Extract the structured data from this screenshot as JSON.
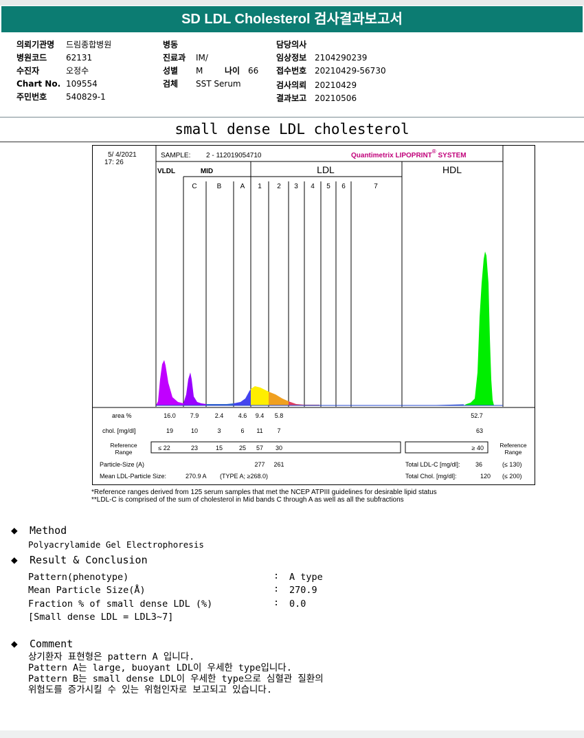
{
  "title": "SD LDL Cholesterol 검사결과보고서",
  "patient": {
    "col1": [
      {
        "k": "의뢰기관명",
        "v": "드림종합병원"
      },
      {
        "k": "병원코드",
        "v": "62131"
      },
      {
        "k": "수진자",
        "v": "오정수"
      },
      {
        "k": "Chart No.",
        "v": "109554"
      },
      {
        "k": "주민번호",
        "v": "540829-1"
      }
    ],
    "col2": [
      {
        "k": "병동",
        "v": ""
      },
      {
        "k": "진료과",
        "v": "IM/"
      },
      {
        "k": "성별",
        "v": "M"
      },
      {
        "k": "검체",
        "v": "SST Serum"
      }
    ],
    "age": {
      "k": "나이",
      "v": "66"
    },
    "col3": [
      {
        "k": "담당의사",
        "v": ""
      },
      {
        "k": "임상정보",
        "v": "2104290239"
      },
      {
        "k": "접수번호",
        "v": "20210429-56730"
      },
      {
        "k": "검사의뢰",
        "v": "20210429"
      },
      {
        "k": "결과보고",
        "v": "20210506"
      }
    ]
  },
  "section_title": "small dense LDL cholesterol",
  "report": {
    "date": "5/ 4/2021",
    "time": "17: 26",
    "sample_label": "SAMPLE:",
    "sample_value": "2 - 112019054710",
    "brand": "Quantimetrix LIPOPRINT",
    "brand_mark": "®",
    "brand_suffix": " SYSTEM",
    "groups": {
      "vldl": "VLDL",
      "mid": "MID",
      "ldl": "LDL",
      "hdl": "HDL"
    },
    "bands": [
      "C",
      "B",
      "A",
      "1",
      "2",
      "3",
      "4",
      "5",
      "6",
      "7"
    ],
    "area_label": "area %",
    "area_values": [
      "16.0",
      "7.9",
      "2.4",
      "4.6",
      "9.4",
      "5.8"
    ],
    "area_hdl": "52.7",
    "chol_label": "chol. [mg/dl]",
    "chol_values": [
      "19",
      "10",
      "3",
      "6",
      "11",
      "7"
    ],
    "chol_hdl": "63",
    "ref_label_1": "Reference",
    "ref_label_2": "Range",
    "ref_values": [
      "≤ 22",
      "23",
      "15",
      "25",
      "57",
      "30"
    ],
    "ref_hdl": "≥  40",
    "particle_label": "Particle-Size (A)",
    "particle_values": [
      "277",
      "261"
    ],
    "mean_label": "Mean LDL-Particle Size:",
    "mean_value": "270.9 A",
    "mean_type": "(TYPE A; ≥268.0)",
    "total_ldl_label": "Total LDL-C [mg/dl]:",
    "total_ldl_value": "36",
    "total_ldl_ref": "(≤ 130)",
    "total_chol_label": "Total Chol. [mg/dl]:",
    "total_chol_value": "120",
    "total_chol_ref": "(≤ 200)"
  },
  "footnotes": [
    "*Reference ranges derived from 125 serum samples that met the NCEP ATPIII guidelines for desirable lipid status",
    "**LDL-C is comprised of the sum of cholesterol in Mid bands C through A as well as all the subfractions"
  ],
  "method": {
    "heading": "Method",
    "text": "Polyacrylamide Gel Electrophoresis"
  },
  "result": {
    "heading": "Result & Conclusion",
    "rows": [
      {
        "label": "Pattern(phenotype)",
        "value": "A type"
      },
      {
        "label": "Mean Particle Size(Å)",
        "value": "270.9"
      },
      {
        "label": "Fraction % of small dense LDL (%)",
        "value": "0.0"
      }
    ],
    "sep": ":",
    "note": "[Small dense LDL = LDL3~7]"
  },
  "comment": {
    "heading": "Comment",
    "lines": [
      "상기환자 표현형은 pattern A 입니다.",
      "Pattern A는 large, buoyant LDL이 우세한 type입니다.",
      "Pattern B는 small dense LDL이 우세한 type으로 심혈관 질환의",
      "위험도를 증가시킬 수 있는 위험인자로 보고되고 있습니다."
    ]
  },
  "colors": {
    "header_bg": "#0c7c72",
    "vldl": "#c000ff",
    "mid_c": "#9900ff",
    "mid_b": "#3366cc",
    "ldl1": "#ffee00",
    "ldl2": "#f0a020",
    "hdl": "#00ee00"
  }
}
